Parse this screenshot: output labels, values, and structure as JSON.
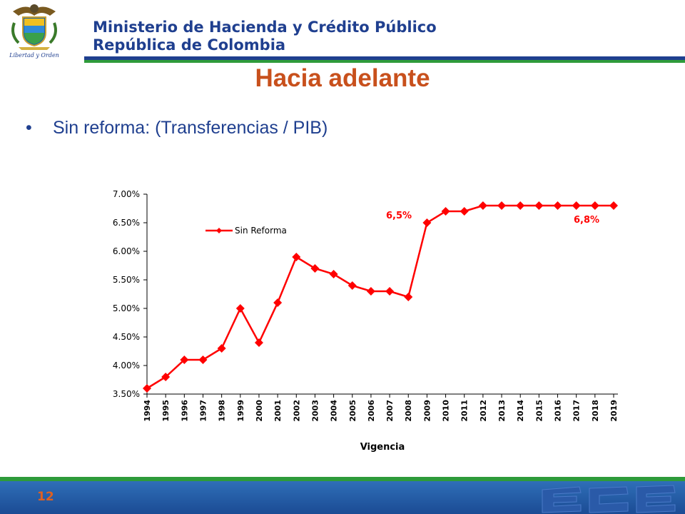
{
  "header": {
    "ministry_line1": "Ministerio de Hacienda y Crédito Público",
    "ministry_line2": "República de Colombia",
    "logo_caption": "Libertad y Orden"
  },
  "slide": {
    "title": "Hacia adelante",
    "bullet_symbol": "•",
    "bullet_text": "Sin reforma: (Transferencias / PIB)",
    "page_number": "12"
  },
  "colors": {
    "series": "#ff0000",
    "title": "#c8501c",
    "brand_blue": "#1f3f8f",
    "brand_green": "#2e9b3a"
  },
  "chart_data": {
    "type": "line",
    "x": [
      "1994",
      "1995",
      "1996",
      "1997",
      "1998",
      "1999",
      "2000",
      "2001",
      "2002",
      "2003",
      "2004",
      "2005",
      "2006",
      "2007",
      "2008",
      "2009",
      "2010",
      "2011",
      "2012",
      "2013",
      "2014",
      "2015",
      "2016",
      "2017",
      "2018",
      "2019"
    ],
    "series": [
      {
        "name": "Sin Reforma",
        "values": [
          3.6,
          3.8,
          4.1,
          4.1,
          4.3,
          5.0,
          4.4,
          5.1,
          5.9,
          5.7,
          5.6,
          5.4,
          5.3,
          5.3,
          5.2,
          6.5,
          6.7,
          6.7,
          6.8,
          6.8,
          6.8,
          6.8,
          6.8,
          6.8,
          6.8,
          6.8
        ]
      }
    ],
    "ylim": [
      3.5,
      7.0
    ],
    "y_ticks": [
      "3.50%",
      "4.00%",
      "4.50%",
      "5.00%",
      "5.50%",
      "6.00%",
      "6.50%",
      "7.00%"
    ],
    "xlabel": "Vigencia",
    "ylabel": "",
    "legend_position": "top-left",
    "annotations": [
      "6,5%",
      "6,8%"
    ]
  }
}
